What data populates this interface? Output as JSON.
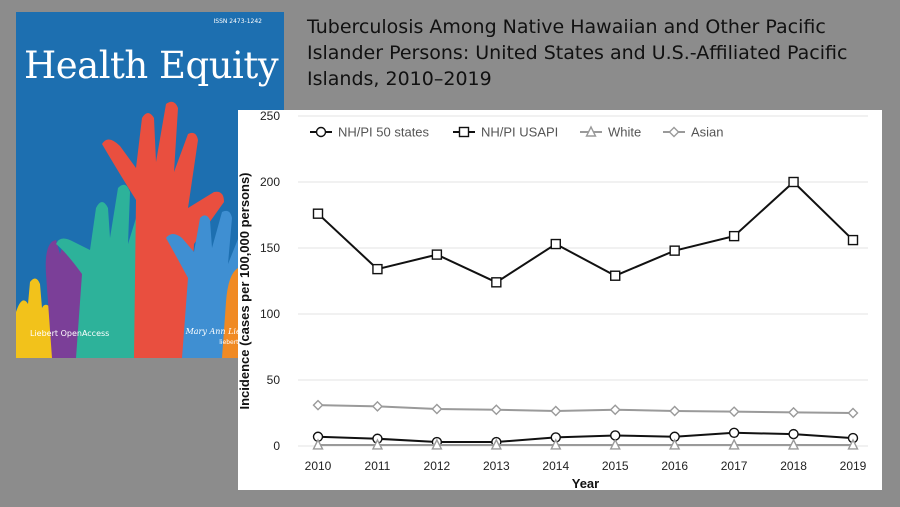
{
  "cover": {
    "issn": "ISSN 2473-1242",
    "journal_title": "Health Equity",
    "footer_left": "Liebert OpenAccess",
    "footer_right": "Mary Ann Liebert, Inc.",
    "footer_url": "liebertpub.com/heq"
  },
  "headline": "Tuberculosis Among Native Hawaiian and Other Pacific Islander Persons: United States and U.S.-Affiliated Pacific Islands, 2010–2019",
  "chart_data": {
    "type": "line",
    "title": "",
    "xlabel": "Year",
    "ylabel": "Incidence (cases per 100,000 persons)",
    "x": [
      2010,
      2011,
      2012,
      2013,
      2014,
      2015,
      2016,
      2017,
      2018,
      2019
    ],
    "ylim": [
      0,
      250
    ],
    "yticks": [
      0,
      50,
      100,
      150,
      200,
      250
    ],
    "grid": "horizontal",
    "legend": "top-left",
    "series": [
      {
        "name": "NH/PI 50 states",
        "marker": "circle",
        "color": "#111111",
        "values": [
          7,
          5.5,
          3,
          3,
          6.5,
          8,
          7,
          10,
          9,
          6
        ]
      },
      {
        "name": "NH/PI USAPI",
        "marker": "square",
        "color": "#111111",
        "values": [
          176,
          134,
          145,
          124,
          153,
          129,
          148,
          159,
          200,
          156
        ]
      },
      {
        "name": "White",
        "marker": "triangle",
        "color": "#9a9a9a",
        "values": [
          0.8,
          0.8,
          0.8,
          0.8,
          0.8,
          0.8,
          0.8,
          0.8,
          0.8,
          0.8
        ]
      },
      {
        "name": "Asian",
        "marker": "diamond",
        "color": "#9a9a9a",
        "values": [
          31,
          30,
          28,
          27.5,
          26.5,
          27.5,
          26.5,
          26,
          25.5,
          25
        ]
      }
    ]
  }
}
